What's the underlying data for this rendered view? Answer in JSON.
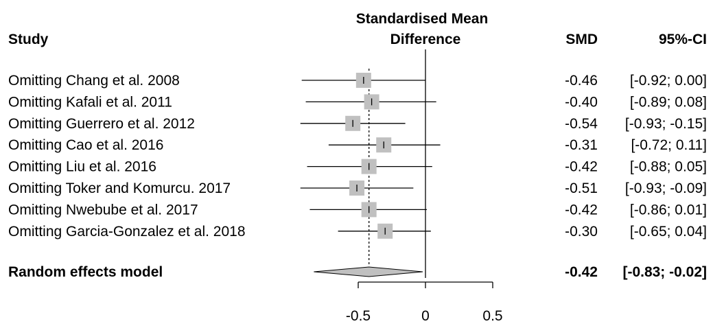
{
  "chart_data": {
    "type": "forest",
    "headers": {
      "study": "Study",
      "effect_line1": "Standardised Mean",
      "effect_line2": "Difference",
      "smd": "SMD",
      "ci": "95%-CI"
    },
    "studies": [
      {
        "label": "Omitting Chang et al. 2008",
        "smd": -0.46,
        "lower": -0.92,
        "upper": 0.0,
        "smd_text": "-0.46",
        "ci_text": "[-0.92;  0.00]"
      },
      {
        "label": "Omitting Kafali et al. 2011",
        "smd": -0.4,
        "lower": -0.89,
        "upper": 0.08,
        "smd_text": "-0.40",
        "ci_text": "[-0.89;  0.08]"
      },
      {
        "label": "Omitting Guerrero et al. 2012",
        "smd": -0.54,
        "lower": -0.93,
        "upper": -0.15,
        "smd_text": "-0.54",
        "ci_text": "[-0.93; -0.15]"
      },
      {
        "label": "Omitting Cao et al. 2016",
        "smd": -0.31,
        "lower": -0.72,
        "upper": 0.11,
        "smd_text": "-0.31",
        "ci_text": "[-0.72;  0.11]"
      },
      {
        "label": "Omitting Liu et al. 2016",
        "smd": -0.42,
        "lower": -0.88,
        "upper": 0.05,
        "smd_text": "-0.42",
        "ci_text": "[-0.88;  0.05]"
      },
      {
        "label": "Omitting Toker and Komurcu. 2017",
        "smd": -0.51,
        "lower": -0.93,
        "upper": -0.09,
        "smd_text": "-0.51",
        "ci_text": "[-0.93; -0.09]"
      },
      {
        "label": "Omitting Nwebube et al. 2017",
        "smd": -0.42,
        "lower": -0.86,
        "upper": 0.01,
        "smd_text": "-0.42",
        "ci_text": "[-0.86;  0.01]"
      },
      {
        "label": "Omitting Garcia-Gonzalez et al. 2018",
        "smd": -0.3,
        "lower": -0.65,
        "upper": 0.04,
        "smd_text": "-0.30",
        "ci_text": "[-0.65;  0.04]"
      }
    ],
    "summary": {
      "label": "Random effects model",
      "smd": -0.42,
      "lower": -0.83,
      "upper": -0.02,
      "smd_text": "-0.42",
      "ci_text": "[-0.83; -0.02]"
    },
    "x_ticks": [
      -0.5,
      0,
      0.5
    ],
    "x_tick_labels": [
      "-0.5",
      "0",
      "0.5"
    ],
    "colors": {
      "square": "#c0c0c0",
      "diamond": "#c0c0c0",
      "line": "#000000"
    }
  }
}
